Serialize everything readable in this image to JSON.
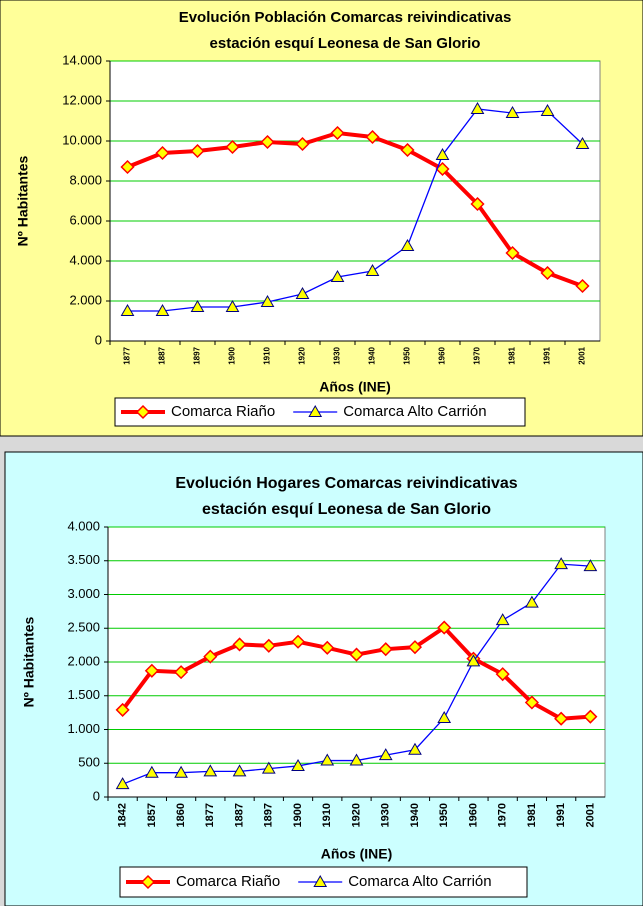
{
  "chart_data": [
    {
      "type": "line",
      "title": [
        "Evolución Población Comarcas reivindicativas",
        "estación esquí Leonesa de San Glorio"
      ],
      "x_label": "Años (INE)",
      "y_label": "Nº Habitantes",
      "categories": [
        "1877",
        "1887",
        "1897",
        "1900",
        "1910",
        "1920",
        "1930",
        "1940",
        "1950",
        "1960",
        "1970",
        "1981",
        "1991",
        "2001"
      ],
      "series": [
        {
          "name": "Comarca Riaño",
          "color": "#ff0000",
          "values": [
            8700,
            9400,
            9500,
            9700,
            9950,
            9850,
            10400,
            10200,
            9550,
            8600,
            6850,
            4400,
            3400,
            2750
          ]
        },
        {
          "name": "Comarca Alto Carrión",
          "color": "#0000ff",
          "values": [
            1500,
            1500,
            1700,
            1700,
            1950,
            2350,
            3200,
            3500,
            4750,
            9300,
            11600,
            11400,
            11500,
            9850
          ]
        }
      ],
      "ylim": [
        0,
        14000
      ],
      "yticks": [
        0,
        {
          "value": 2000,
          "label": "2.000"
        },
        {
          "value": 4000,
          "label": "4.000"
        },
        {
          "value": 6000,
          "label": "6.000"
        },
        {
          "value": 8000,
          "label": "8.000"
        },
        {
          "value": 10000,
          "label": "10.000"
        },
        {
          "value": 12000,
          "label": "12.000"
        },
        {
          "value": 14000,
          "label": "14.000"
        }
      ],
      "grid": true,
      "legend": "bottom",
      "background": "#ffff99"
    },
    {
      "type": "line",
      "title": [
        "Evolución Hogares Comarcas reivindicativas",
        "estación esquí Leonesa de San Glorio"
      ],
      "x_label": "Años (INE)",
      "y_label": "Nº Habitantes",
      "categories": [
        "1842",
        "1857",
        "1860",
        "1877",
        "1887",
        "1897",
        "1900",
        "1910",
        "1920",
        "1930",
        "1940",
        "1950",
        "1960",
        "1970",
        "1981",
        "1991",
        "2001"
      ],
      "series": [
        {
          "name": "Comarca Riaño",
          "color": "#ff0000",
          "values": [
            1290,
            1870,
            1850,
            2080,
            2260,
            2240,
            2300,
            2210,
            2110,
            2190,
            2220,
            2510,
            2050,
            1820,
            1400,
            1160,
            1190
          ]
        },
        {
          "name": "Comarca Alto Carrión",
          "color": "#0000ff",
          "values": [
            190,
            360,
            360,
            380,
            380,
            420,
            460,
            540,
            540,
            620,
            700,
            1170,
            2010,
            2620,
            2880,
            3450,
            3420
          ]
        }
      ],
      "ylim": [
        0,
        4000
      ],
      "yticks": [
        0,
        500,
        {
          "value": 1000,
          "label": "1.000"
        },
        {
          "value": 1500,
          "label": "1.500"
        },
        {
          "value": 2000,
          "label": "2.000"
        },
        {
          "value": 2500,
          "label": "2.500"
        },
        {
          "value": 3000,
          "label": "3.000"
        },
        {
          "value": 3500,
          "label": "3.500"
        },
        {
          "value": 4000,
          "label": "4.000"
        }
      ],
      "grid": true,
      "legend": "bottom",
      "background": "#ccffff"
    }
  ]
}
